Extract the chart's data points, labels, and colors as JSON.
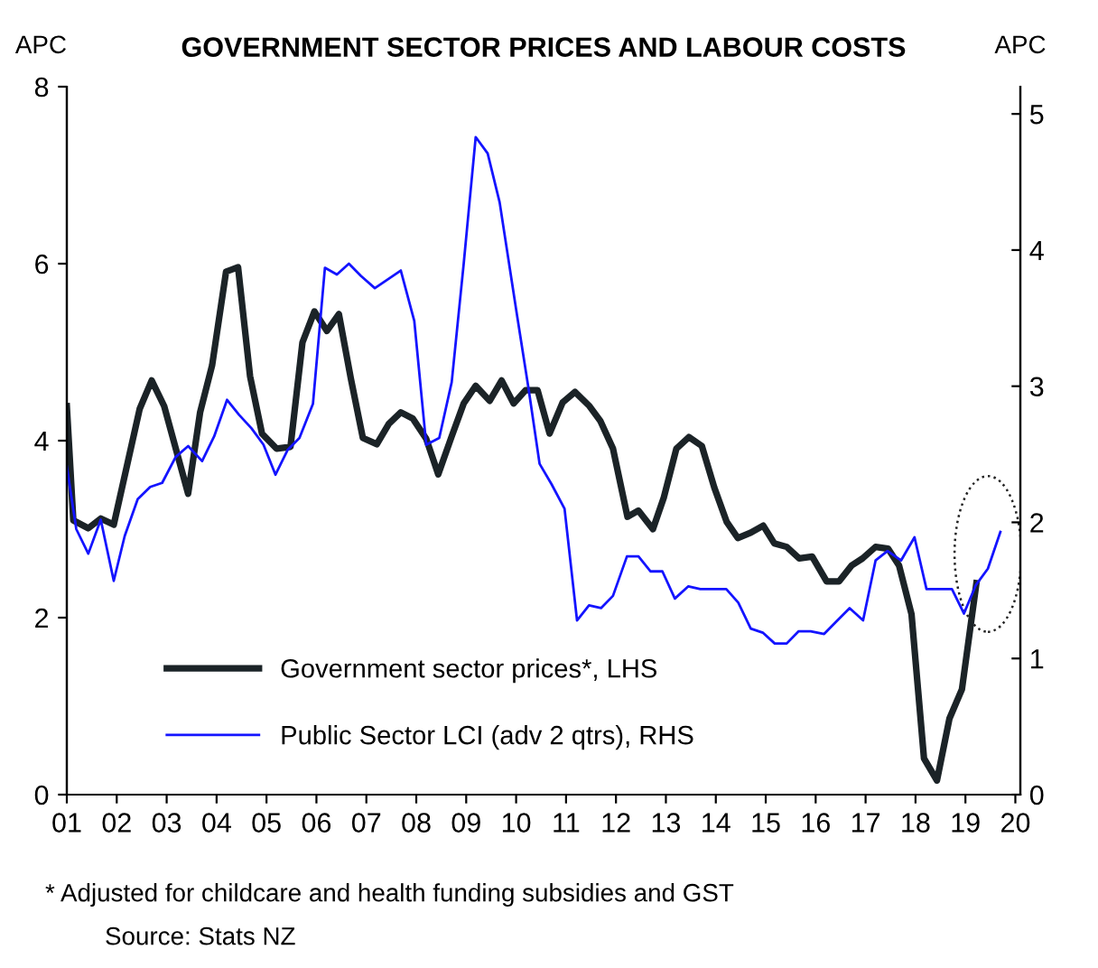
{
  "chart_data": {
    "type": "line",
    "title": "GOVERNMENT SECTOR PRICES AND LABOUR COSTS",
    "ylabel": "APC",
    "y2label": "APC",
    "xlim": [
      2001,
      2020.1
    ],
    "xticks": [
      {
        "value": 2001,
        "label": "01"
      },
      {
        "value": 2002,
        "label": "02"
      },
      {
        "value": 2003,
        "label": "03"
      },
      {
        "value": 2004,
        "label": "04"
      },
      {
        "value": 2005,
        "label": "05"
      },
      {
        "value": 2006,
        "label": "06"
      },
      {
        "value": 2007,
        "label": "07"
      },
      {
        "value": 2008,
        "label": "08"
      },
      {
        "value": 2009,
        "label": "09"
      },
      {
        "value": 2010,
        "label": "10"
      },
      {
        "value": 2011,
        "label": "11"
      },
      {
        "value": 2012,
        "label": "12"
      },
      {
        "value": 2013,
        "label": "13"
      },
      {
        "value": 2014,
        "label": "14"
      },
      {
        "value": 2015,
        "label": "15"
      },
      {
        "value": 2016,
        "label": "16"
      },
      {
        "value": 2017,
        "label": "17"
      },
      {
        "value": 2018,
        "label": "18"
      },
      {
        "value": 2019,
        "label": "19"
      },
      {
        "value": 2020,
        "label": "20"
      }
    ],
    "ylim": [
      0,
      8
    ],
    "yticks": [
      0,
      2,
      4,
      6,
      8
    ],
    "y2lim": [
      0,
      5.2
    ],
    "y2ticks": [
      0,
      1,
      2,
      3,
      4,
      5
    ],
    "grid": false,
    "legend": "bottom left",
    "marker": "none",
    "line_style": "solid",
    "series": [
      {
        "name": "Government sector prices*, LHS",
        "color": "#1b2327",
        "x": [
          2001.0,
          2001.13,
          2001.43,
          2001.68,
          2001.94,
          2002.46,
          2002.7,
          2002.95,
          2003.43,
          2003.67,
          2003.91,
          2004.19,
          2004.43,
          2004.67,
          2004.91,
          2005.2,
          2005.48,
          2005.72,
          2005.96,
          2006.21,
          2006.45,
          2006.69,
          2006.93,
          2007.21,
          2007.45,
          2007.69,
          2007.93,
          2008.2,
          2008.44,
          2008.71,
          2008.95,
          2009.19,
          2009.47,
          2009.71,
          2009.95,
          2010.19,
          2010.43,
          2010.67,
          2010.93,
          2011.18,
          2011.47,
          2011.69,
          2011.94,
          2012.23,
          2012.45,
          2012.74,
          2012.96,
          2013.21,
          2013.46,
          2013.72,
          2013.97,
          2014.22,
          2014.44,
          2014.7,
          2014.95,
          2015.17,
          2015.42,
          2015.67,
          2015.93,
          2016.22,
          2016.47,
          2016.72,
          2016.94,
          2017.2,
          2017.45,
          2017.67,
          2017.92,
          2018.17,
          2018.43,
          2018.68,
          2018.93,
          2019.22
        ],
        "values": [
          4.39,
          3.1,
          3.01,
          3.12,
          3.05,
          4.36,
          4.68,
          4.39,
          3.4,
          4.32,
          4.85,
          5.91,
          5.96,
          4.73,
          4.08,
          3.91,
          3.93,
          5.11,
          5.46,
          5.24,
          5.43,
          4.7,
          4.03,
          3.96,
          4.19,
          4.32,
          4.25,
          4.02,
          3.62,
          4.05,
          4.42,
          4.62,
          4.45,
          4.68,
          4.42,
          4.57,
          4.57,
          4.08,
          4.43,
          4.55,
          4.39,
          4.22,
          3.91,
          3.14,
          3.21,
          3.0,
          3.36,
          3.91,
          4.04,
          3.94,
          3.47,
          3.08,
          2.9,
          2.96,
          3.04,
          2.84,
          2.8,
          2.67,
          2.69,
          2.41,
          2.41,
          2.59,
          2.67,
          2.8,
          2.78,
          2.59,
          2.04,
          0.41,
          0.16,
          0.86,
          1.19,
          2.39
        ]
      },
      {
        "name": "Public Sector LCI (adv 2 qtrs), RHS",
        "color": "#1414ff",
        "axis": "y2",
        "x": [
          2001.0,
          2001.19,
          2001.43,
          2001.68,
          2001.94,
          2002.16,
          2002.42,
          2002.67,
          2002.91,
          2003.18,
          2003.43,
          2003.71,
          2003.95,
          2004.21,
          2004.45,
          2004.7,
          2004.94,
          2005.18,
          2005.42,
          2005.66,
          2005.93,
          2006.17,
          2006.41,
          2006.65,
          2006.89,
          2007.17,
          2007.41,
          2007.69,
          2007.96,
          2008.2,
          2008.46,
          2008.71,
          2008.95,
          2009.19,
          2009.43,
          2009.67,
          2010.01,
          2010.25,
          2010.47,
          2010.71,
          2010.97,
          2011.22,
          2011.46,
          2011.7,
          2011.94,
          2012.22,
          2012.45,
          2012.69,
          2012.93,
          2013.18,
          2013.45,
          2013.69,
          2013.93,
          2014.21,
          2014.45,
          2014.7,
          2014.94,
          2015.18,
          2015.42,
          2015.66,
          2015.9,
          2016.17,
          2016.41,
          2016.68,
          2016.95,
          2017.2,
          2017.44,
          2017.71,
          2017.98,
          2018.22,
          2018.46,
          2018.73,
          2018.97,
          2019.21,
          2019.45,
          2019.7
        ],
        "values": [
          2.41,
          1.95,
          1.77,
          2.02,
          1.57,
          1.9,
          2.17,
          2.26,
          2.29,
          2.48,
          2.56,
          2.45,
          2.63,
          2.9,
          2.79,
          2.69,
          2.57,
          2.35,
          2.53,
          2.62,
          2.87,
          3.87,
          3.82,
          3.9,
          3.81,
          3.72,
          3.78,
          3.85,
          3.48,
          2.57,
          2.62,
          3.03,
          3.9,
          4.83,
          4.71,
          4.35,
          3.54,
          2.98,
          2.43,
          2.28,
          2.1,
          1.28,
          1.39,
          1.37,
          1.46,
          1.75,
          1.75,
          1.64,
          1.64,
          1.44,
          1.53,
          1.51,
          1.51,
          1.51,
          1.41,
          1.22,
          1.19,
          1.11,
          1.11,
          1.2,
          1.2,
          1.18,
          1.27,
          1.37,
          1.28,
          1.72,
          1.79,
          1.72,
          1.89,
          1.51,
          1.51,
          1.51,
          1.33,
          1.54,
          1.66,
          1.93
        ]
      }
    ],
    "annotations": [
      "* Adjusted for childcare and health funding subsidies and GST",
      "Source: Stats NZ"
    ]
  }
}
